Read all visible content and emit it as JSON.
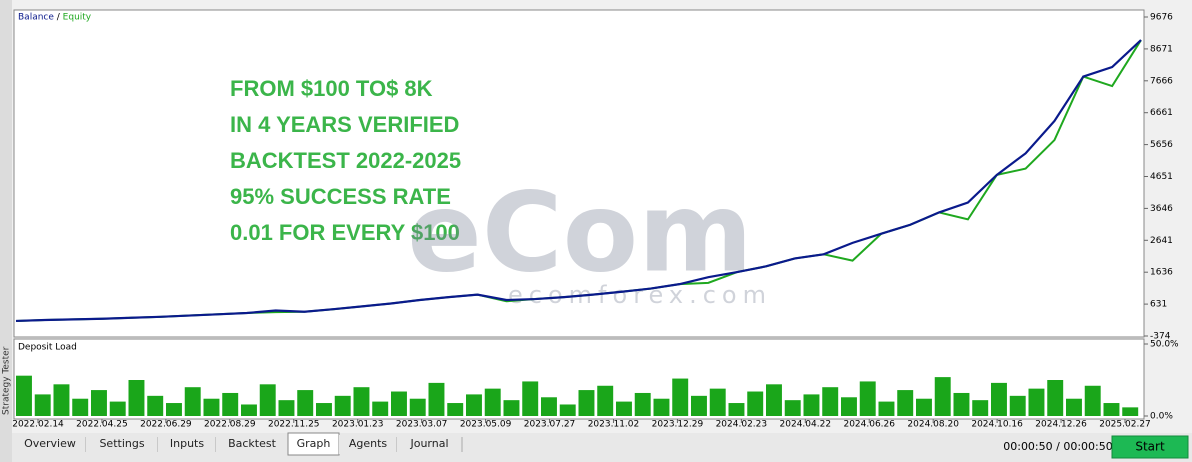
{
  "chart_data": [
    {
      "type": "line",
      "legend_separator": " / ",
      "series": [
        {
          "name": "Balance",
          "color": "#0a1a8c",
          "values": [
            100,
            130,
            150,
            170,
            200,
            230,
            270,
            310,
            350,
            430,
            390,
            470,
            560,
            650,
            760,
            850,
            930,
            760,
            790,
            850,
            930,
            1020,
            1120,
            1260,
            1480,
            1640,
            1820,
            2070,
            2200,
            2560,
            2850,
            3130,
            3520,
            3830,
            4700,
            5380,
            6400,
            7800,
            8100,
            8950
          ]
        },
        {
          "name": "Equity",
          "color": "#1fa81f",
          "values": [
            100,
            130,
            150,
            170,
            200,
            230,
            270,
            310,
            350,
            380,
            390,
            470,
            560,
            650,
            760,
            850,
            930,
            720,
            790,
            850,
            930,
            1020,
            1120,
            1260,
            1300,
            1640,
            1820,
            2070,
            2200,
            2000,
            2850,
            3130,
            3520,
            3300,
            4700,
            4900,
            5800,
            7800,
            7500,
            8950
          ]
        }
      ],
      "ylim": [
        -374,
        9676
      ],
      "yticks": [
        -374,
        631,
        1636,
        2641,
        3646,
        4651,
        5656,
        6661,
        7666,
        8671,
        9676
      ]
    },
    {
      "type": "bar",
      "title": "Deposit Load",
      "color": "#1aa61a",
      "values": [
        28,
        15,
        22,
        12,
        18,
        10,
        25,
        14,
        9,
        20,
        12,
        16,
        8,
        22,
        11,
        18,
        9,
        14,
        20,
        10,
        17,
        12,
        23,
        9,
        15,
        19,
        11,
        24,
        13,
        8,
        18,
        21,
        10,
        16,
        12,
        26,
        14,
        19,
        9,
        17,
        22,
        11,
        15,
        20,
        13,
        24,
        10,
        18,
        12,
        27,
        16,
        11,
        23,
        14,
        19,
        25,
        12,
        21,
        9,
        6
      ],
      "ylim": [
        0,
        50
      ],
      "yticks": [
        {
          "value": 0,
          "label": "0.0%"
        },
        {
          "value": 50,
          "label": "50.0%"
        }
      ],
      "xtick_labels": [
        "2022.02.14",
        "2022.04.25",
        "2022.06.29",
        "2022.08.29",
        "2022.11.25",
        "2023.01.23",
        "2023.03.07",
        "2023.05.09",
        "2023.07.27",
        "2023.11.02",
        "2023.12.29",
        "2024.02.23",
        "2024.04.22",
        "2024.06.26",
        "2024.08.20",
        "2024.10.16",
        "2024.12.26",
        "2025.02.27"
      ]
    }
  ],
  "overlay_text": [
    "FROM $100 TO$ 8K",
    "IN 4 YEARS VERIFIED",
    "BACKTEST 2022-2025",
    "95% SUCCESS RATE",
    "0.01 FOR EVERY $100"
  ],
  "watermark": "ecomforex.com",
  "side_label": "Strategy Tester",
  "tabs": [
    "Overview",
    "Settings",
    "Inputs",
    "Backtest",
    "Graph",
    "Agents",
    "Journal"
  ],
  "active_tab": "Graph",
  "timer": "00:00:50 / 00:00:50",
  "start_button": "Start"
}
